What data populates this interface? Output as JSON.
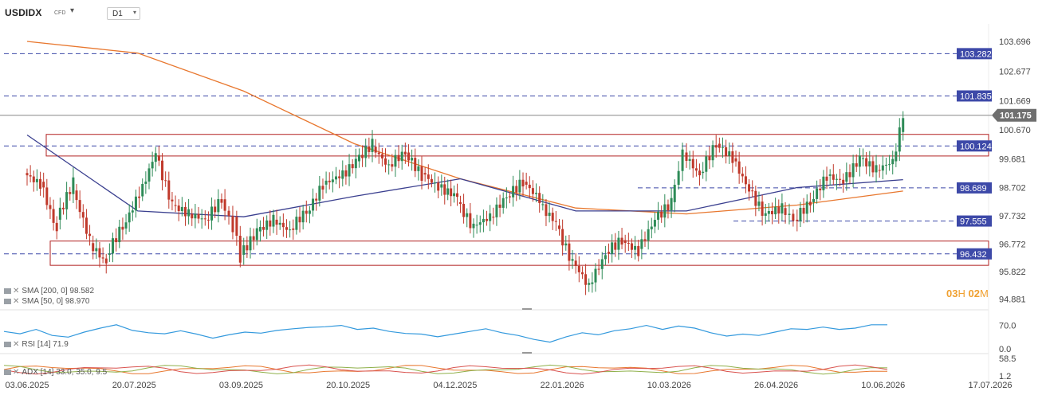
{
  "header": {
    "symbol": "USDIDX",
    "symbol_type": "CFD",
    "timeframe": "D1"
  },
  "price_axis": {
    "ticks": [
      "103.696",
      "102.677",
      "101.669",
      "100.670",
      "99.681",
      "98.702",
      "97.732",
      "96.772",
      "95.822",
      "94.881"
    ]
  },
  "date_axis": {
    "ticks": [
      "03.06.2025",
      "20.07.2025",
      "03.09.2025",
      "20.10.2025",
      "04.12.2025",
      "22.01.2026",
      "10.03.2026",
      "26.04.2026",
      "10.06.2026",
      "17.07.2026"
    ]
  },
  "levels": {
    "current": "101.175",
    "horizontal": [
      "103.282",
      "101.835",
      "100.124",
      "98.689",
      "97.555",
      "96.432"
    ]
  },
  "indicators": {
    "sma200": "SMA [200, 0] 98.582",
    "sma50": "SMA [50, 0] 98.970",
    "rsi": "RSI [14] 71.9",
    "adx": "ADX [14] 33.0, 35.0, 9.5",
    "rsi_ticks": [
      "70.0",
      "0.0"
    ],
    "adx_ticks": [
      "58.5",
      "1.2"
    ]
  },
  "countdown": {
    "hours": "03",
    "h_unit": "H",
    "minutes": "02",
    "m_unit": "M"
  },
  "colors": {
    "bull": "#2e8b57",
    "bear": "#c0392b",
    "sma200": "#e8772e",
    "sma50": "#3a3f8f",
    "rsi": "#3399dd",
    "level_badge": "#3d49a8",
    "zone": "#b22222",
    "current_badge": "#6f6f6f"
  },
  "chart_data": {
    "type": "candlestick",
    "title": "",
    "x_range": [
      "03.06.2025",
      "17.07.2026"
    ],
    "ylim": [
      94.881,
      103.696
    ],
    "candles": [
      [
        "2025-06-03",
        99.2,
        98.8
      ],
      [
        "2025-06-10",
        98.9,
        97.2
      ],
      [
        "2025-06-17",
        97.6,
        98.9
      ],
      [
        "2025-06-24",
        98.6,
        96.9
      ],
      [
        "2025-07-01",
        96.8,
        96.1
      ],
      [
        "2025-07-08",
        96.4,
        97.4
      ],
      [
        "2025-07-15",
        97.3,
        98.5
      ],
      [
        "2025-07-22",
        98.4,
        99.9
      ],
      [
        "2025-07-29",
        99.8,
        98.1
      ],
      [
        "2025-08-05",
        98.1,
        97.8
      ],
      [
        "2025-08-12",
        97.8,
        97.6
      ],
      [
        "2025-08-19",
        97.6,
        98.3
      ],
      [
        "2025-08-26",
        98.3,
        97.3
      ],
      [
        "2025-08-31",
        97.7,
        96.2
      ],
      [
        "2025-09-03",
        96.4,
        97.2
      ],
      [
        "2025-09-10",
        97.2,
        97.6
      ],
      [
        "2025-09-17",
        97.6,
        97.2
      ],
      [
        "2025-09-24",
        97.3,
        97.9
      ],
      [
        "2025-10-01",
        97.8,
        98.8
      ],
      [
        "2025-10-08",
        98.8,
        99.1
      ],
      [
        "2025-10-15",
        99.0,
        99.6
      ],
      [
        "2025-10-22",
        99.6,
        100.2
      ],
      [
        "2025-10-29",
        100.1,
        99.4
      ],
      [
        "2025-11-05",
        99.5,
        99.9
      ],
      [
        "2025-11-12",
        99.9,
        99.1
      ],
      [
        "2025-11-19",
        99.2,
        98.7
      ],
      [
        "2025-11-26",
        98.7,
        98.4
      ],
      [
        "2025-12-04",
        98.2,
        97.3
      ],
      [
        "2025-12-11",
        97.4,
        97.7
      ],
      [
        "2025-12-18",
        97.7,
        98.4
      ],
      [
        "2025-12-25",
        98.4,
        98.9
      ],
      [
        "2026-01-01",
        98.9,
        98.3
      ],
      [
        "2026-01-08",
        98.1,
        97.5
      ],
      [
        "2026-01-15",
        97.4,
        96.1
      ],
      [
        "2026-01-22",
        96.2,
        95.3
      ],
      [
        "2026-01-29",
        95.4,
        96.4
      ],
      [
        "2026-02-05",
        96.5,
        96.9
      ],
      [
        "2026-02-12",
        96.9,
        96.5
      ],
      [
        "2026-02-19",
        96.6,
        97.6
      ],
      [
        "2026-02-26",
        97.6,
        98.2
      ],
      [
        "2026-03-05",
        98.2,
        99.9
      ],
      [
        "2026-03-10",
        99.9,
        99.1
      ],
      [
        "2026-03-17",
        99.2,
        100.2
      ],
      [
        "2026-03-24",
        100.2,
        99.7
      ],
      [
        "2026-03-31",
        99.7,
        98.6
      ],
      [
        "2026-04-07",
        98.6,
        97.7
      ],
      [
        "2026-04-14",
        97.8,
        98.0
      ],
      [
        "2026-04-21",
        98.0,
        97.6
      ],
      [
        "2026-04-26",
        97.6,
        98.2
      ],
      [
        "2026-05-03",
        98.2,
        99.1
      ],
      [
        "2026-05-10",
        99.1,
        98.9
      ],
      [
        "2026-05-17",
        98.9,
        99.7
      ],
      [
        "2026-05-24",
        99.7,
        99.3
      ],
      [
        "2026-05-31",
        99.3,
        99.6
      ],
      [
        "2026-06-07",
        99.6,
        100.6
      ],
      [
        "2026-06-10",
        100.6,
        101.175
      ]
    ],
    "sma200": [
      [
        "2025-06-03",
        103.7
      ],
      [
        "2025-07-20",
        103.3
      ],
      [
        "2025-09-03",
        102.0
      ],
      [
        "2025-10-20",
        100.2
      ],
      [
        "2025-12-04",
        99.0
      ],
      [
        "2026-01-22",
        98.0
      ],
      [
        "2026-03-10",
        97.8
      ],
      [
        "2026-04-26",
        98.1
      ],
      [
        "2026-06-10",
        98.58
      ]
    ],
    "sma50": [
      [
        "2025-06-03",
        100.5
      ],
      [
        "2025-07-20",
        97.9
      ],
      [
        "2025-09-03",
        97.7
      ],
      [
        "2025-10-20",
        98.4
      ],
      [
        "2025-12-04",
        99.0
      ],
      [
        "2026-01-22",
        97.9
      ],
      [
        "2026-03-10",
        97.9
      ],
      [
        "2026-04-26",
        98.7
      ],
      [
        "2026-06-10",
        98.97
      ]
    ],
    "rsi": [
      52,
      45,
      58,
      40,
      35,
      50,
      62,
      72,
      55,
      48,
      45,
      54,
      44,
      32,
      42,
      50,
      47,
      55,
      60,
      64,
      66,
      70,
      58,
      62,
      52,
      46,
      44,
      36,
      44,
      52,
      60,
      48,
      40,
      28,
      20,
      36,
      48,
      42,
      54,
      60,
      70,
      58,
      68,
      62,
      48,
      38,
      44,
      40,
      50,
      60,
      58,
      65,
      58,
      62,
      72,
      72
    ],
    "zones": [
      [
        99.78,
        100.52
      ],
      [
        96.04,
        96.87
      ]
    ]
  }
}
